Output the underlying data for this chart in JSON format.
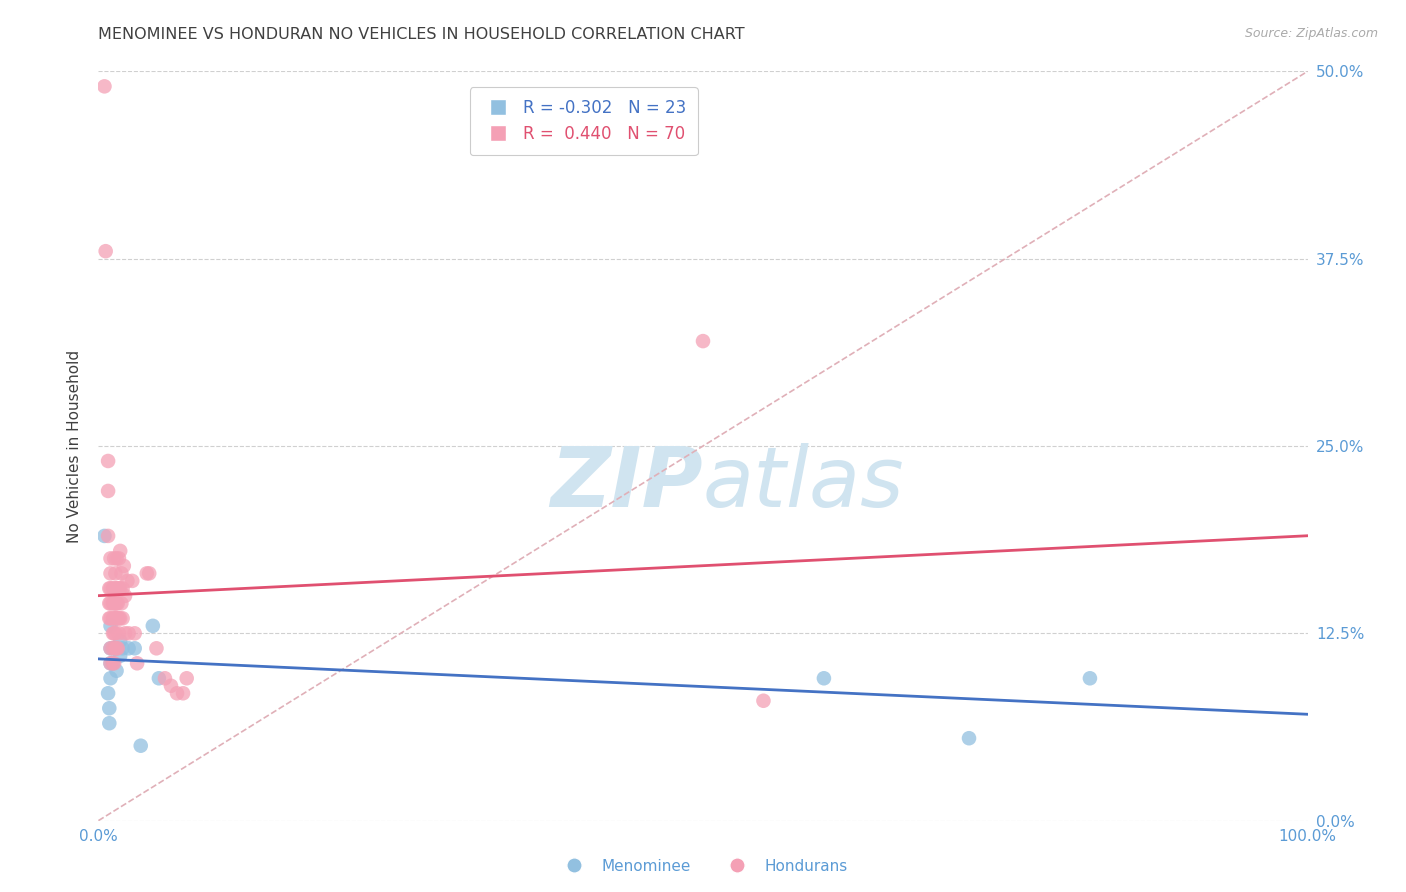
{
  "title": "MENOMINEE VS HONDURAN NO VEHICLES IN HOUSEHOLD CORRELATION CHART",
  "source": "Source: ZipAtlas.com",
  "ylabel": "No Vehicles in Household",
  "xlim": [
    0.0,
    1.0
  ],
  "ylim": [
    0.0,
    0.5
  ],
  "ytick_vals": [
    0.0,
    0.125,
    0.25,
    0.375,
    0.5
  ],
  "ytick_labels_right": [
    "0.0%",
    "12.5%",
    "25.0%",
    "37.5%",
    "50.0%"
  ],
  "menominee_color": "#92c0e0",
  "honduran_color": "#f4a0b5",
  "menominee_line_color": "#4472c4",
  "honduran_line_color": "#e05070",
  "diagonal_line_color": "#e0b0b8",
  "background_color": "#ffffff",
  "grid_color": "#d0d0d0",
  "title_color": "#404040",
  "source_color": "#aaaaaa",
  "axis_label_color": "#404040",
  "tick_color": "#5b9bd5",
  "watermark_zip": "ZIP",
  "watermark_atlas": "atlas",
  "watermark_color": "#d0e4f0",
  "menominee_R": -0.302,
  "menominee_N": 23,
  "honduran_R": 0.44,
  "honduran_N": 70,
  "menominee_scatter": [
    [
      0.005,
      0.19
    ],
    [
      0.008,
      0.085
    ],
    [
      0.009,
      0.075
    ],
    [
      0.009,
      0.065
    ],
    [
      0.01,
      0.13
    ],
    [
      0.01,
      0.115
    ],
    [
      0.01,
      0.105
    ],
    [
      0.01,
      0.095
    ],
    [
      0.012,
      0.115
    ],
    [
      0.012,
      0.105
    ],
    [
      0.015,
      0.115
    ],
    [
      0.015,
      0.1
    ],
    [
      0.018,
      0.12
    ],
    [
      0.018,
      0.11
    ],
    [
      0.02,
      0.115
    ],
    [
      0.025,
      0.115
    ],
    [
      0.03,
      0.115
    ],
    [
      0.035,
      0.05
    ],
    [
      0.045,
      0.13
    ],
    [
      0.05,
      0.095
    ],
    [
      0.6,
      0.095
    ],
    [
      0.72,
      0.055
    ],
    [
      0.82,
      0.095
    ]
  ],
  "honduran_scatter": [
    [
      0.005,
      0.49
    ],
    [
      0.006,
      0.38
    ],
    [
      0.008,
      0.24
    ],
    [
      0.008,
      0.22
    ],
    [
      0.008,
      0.19
    ],
    [
      0.009,
      0.155
    ],
    [
      0.009,
      0.145
    ],
    [
      0.009,
      0.135
    ],
    [
      0.01,
      0.175
    ],
    [
      0.01,
      0.165
    ],
    [
      0.01,
      0.155
    ],
    [
      0.01,
      0.145
    ],
    [
      0.01,
      0.135
    ],
    [
      0.01,
      0.115
    ],
    [
      0.01,
      0.105
    ],
    [
      0.012,
      0.155
    ],
    [
      0.012,
      0.145
    ],
    [
      0.012,
      0.135
    ],
    [
      0.012,
      0.125
    ],
    [
      0.012,
      0.115
    ],
    [
      0.012,
      0.105
    ],
    [
      0.013,
      0.175
    ],
    [
      0.013,
      0.155
    ],
    [
      0.013,
      0.145
    ],
    [
      0.013,
      0.135
    ],
    [
      0.013,
      0.125
    ],
    [
      0.013,
      0.105
    ],
    [
      0.014,
      0.165
    ],
    [
      0.014,
      0.145
    ],
    [
      0.014,
      0.135
    ],
    [
      0.014,
      0.125
    ],
    [
      0.014,
      0.115
    ],
    [
      0.015,
      0.175
    ],
    [
      0.015,
      0.155
    ],
    [
      0.015,
      0.145
    ],
    [
      0.015,
      0.135
    ],
    [
      0.015,
      0.115
    ],
    [
      0.016,
      0.155
    ],
    [
      0.016,
      0.145
    ],
    [
      0.016,
      0.135
    ],
    [
      0.016,
      0.115
    ],
    [
      0.017,
      0.175
    ],
    [
      0.017,
      0.155
    ],
    [
      0.017,
      0.135
    ],
    [
      0.017,
      0.125
    ],
    [
      0.018,
      0.18
    ],
    [
      0.018,
      0.155
    ],
    [
      0.018,
      0.135
    ],
    [
      0.019,
      0.165
    ],
    [
      0.019,
      0.145
    ],
    [
      0.02,
      0.155
    ],
    [
      0.02,
      0.135
    ],
    [
      0.021,
      0.17
    ],
    [
      0.022,
      0.15
    ],
    [
      0.022,
      0.125
    ],
    [
      0.024,
      0.16
    ],
    [
      0.025,
      0.125
    ],
    [
      0.028,
      0.16
    ],
    [
      0.03,
      0.125
    ],
    [
      0.032,
      0.105
    ],
    [
      0.04,
      0.165
    ],
    [
      0.042,
      0.165
    ],
    [
      0.048,
      0.115
    ],
    [
      0.055,
      0.095
    ],
    [
      0.06,
      0.09
    ],
    [
      0.065,
      0.085
    ],
    [
      0.07,
      0.085
    ],
    [
      0.073,
      0.095
    ],
    [
      0.5,
      0.32
    ],
    [
      0.55,
      0.08
    ]
  ]
}
